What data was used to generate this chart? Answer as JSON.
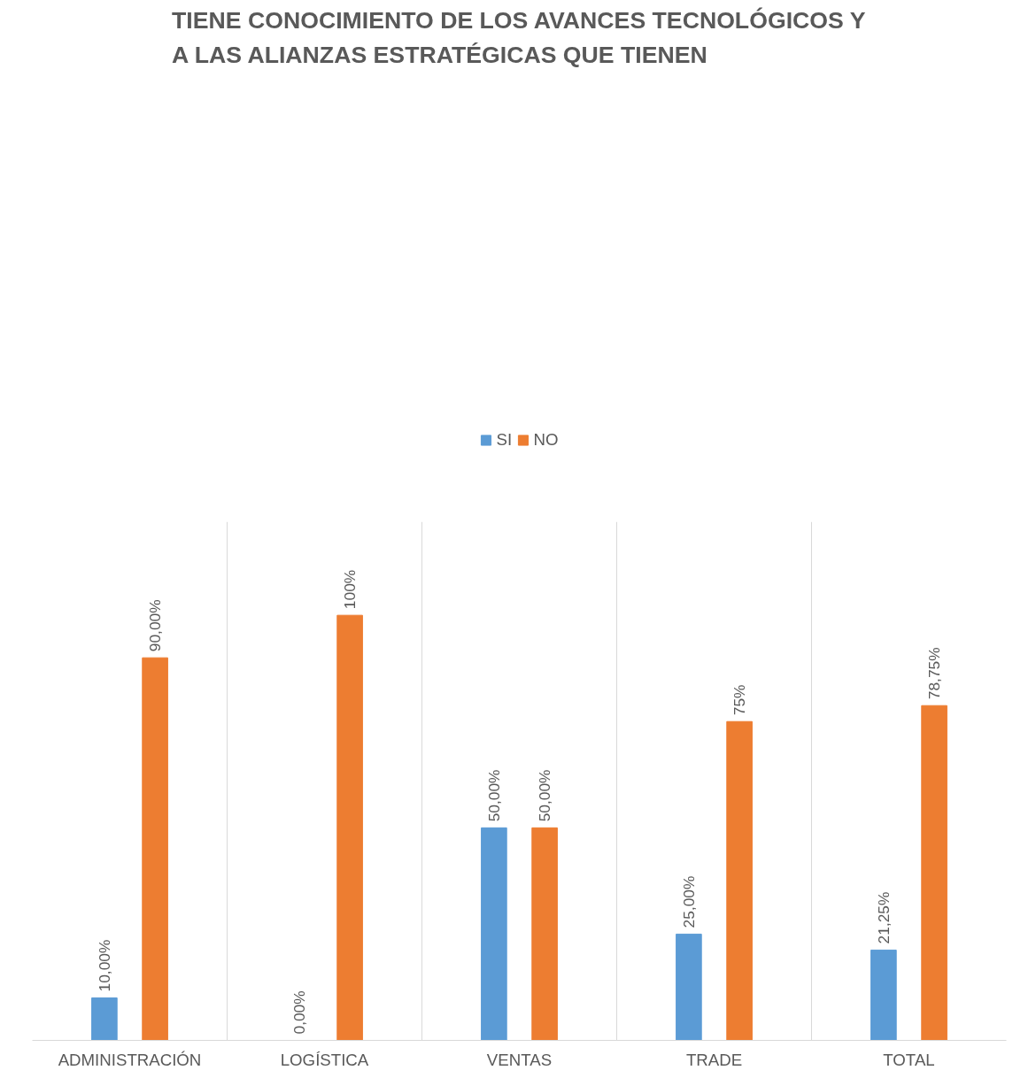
{
  "chart_data": {
    "type": "bar",
    "title": "TIENE CONOCIMIENTO DE LOS AVANCES TECNOLÓGICOS Y A LAS ALIANZAS ESTRATÉGICAS QUE TIENEN",
    "categories": [
      "ADMINISTRACIÓN",
      "LOGÍSTICA",
      "VENTAS",
      "TRADE",
      "TOTAL"
    ],
    "series": [
      {
        "name": "SI",
        "color": "#5b9bd5",
        "values": [
          10,
          0,
          50,
          25,
          21.25
        ],
        "value_labels": [
          "10,00%",
          "0,00%",
          "50,00%",
          "25,00%",
          "21,25%"
        ]
      },
      {
        "name": "NO",
        "color": "#ed7d31",
        "values": [
          90,
          100,
          50,
          75,
          78.75
        ],
        "value_labels": [
          "90,00%",
          "100%",
          "50,00%",
          "75%",
          "78,75%"
        ]
      }
    ],
    "grid": "x",
    "legend": "top",
    "tick_labels": "x"
  }
}
